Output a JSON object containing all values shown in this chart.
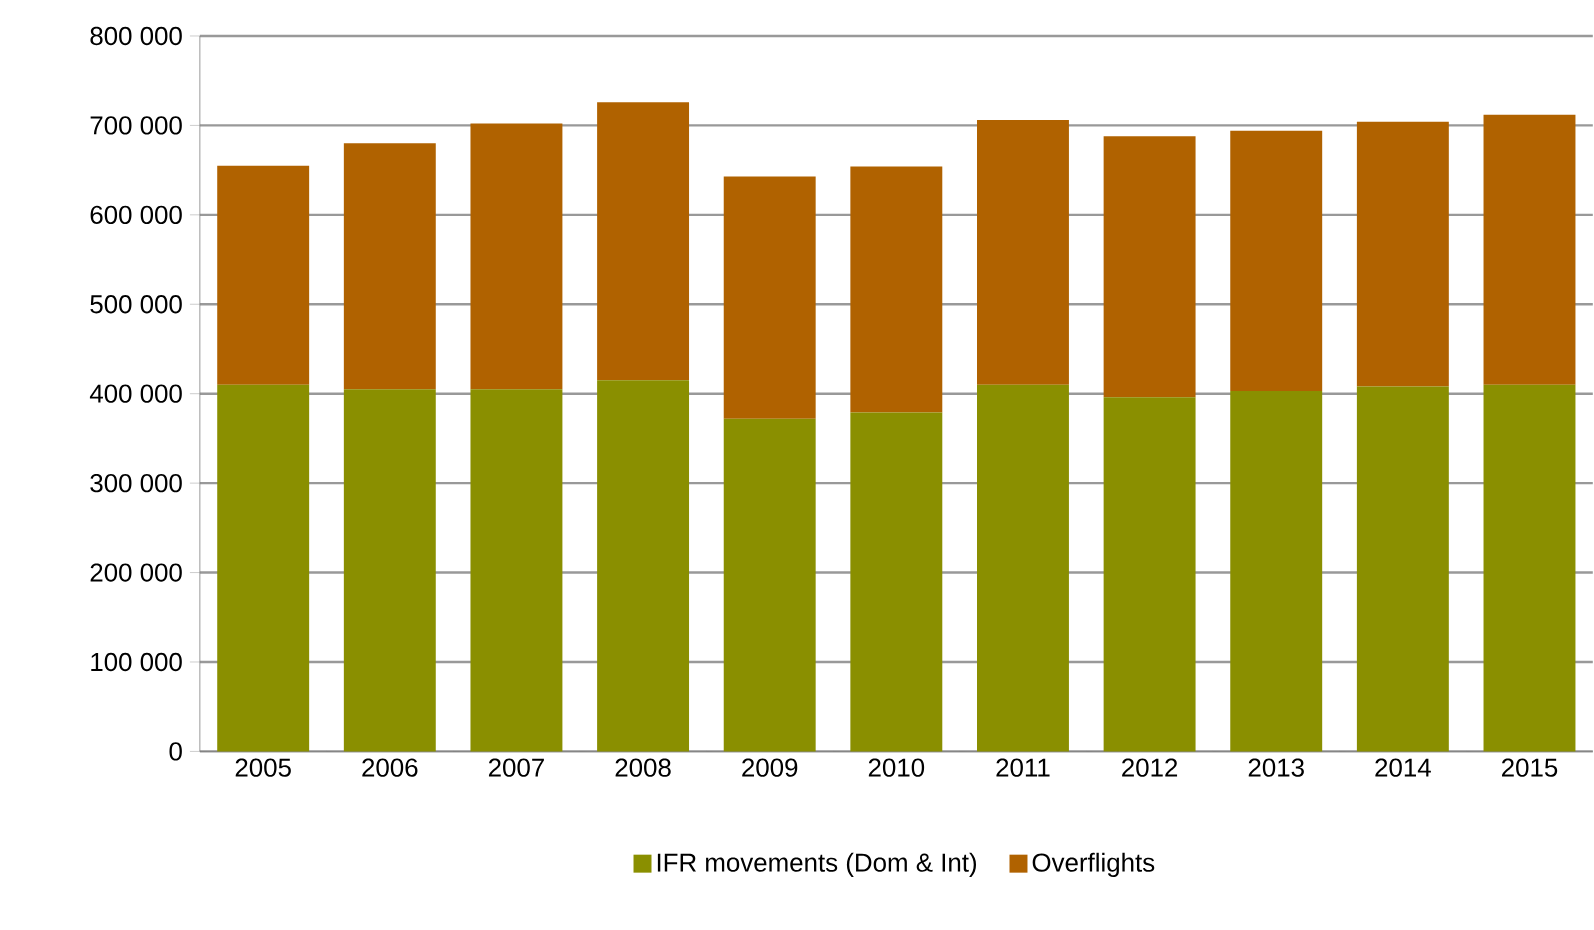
{
  "chart_data": {
    "type": "bar",
    "stacked": true,
    "categories": [
      "2005",
      "2006",
      "2007",
      "2008",
      "2009",
      "2010",
      "2011",
      "2012",
      "2013",
      "2014",
      "2015"
    ],
    "series": [
      {
        "name": "IFR movements (Dom & Int)",
        "color": "#8a8f00",
        "values": [
          410000,
          405000,
          405000,
          415000,
          372000,
          379000,
          410000,
          396000,
          403000,
          408000,
          410000
        ]
      },
      {
        "name": "Overflights",
        "color": "#b06200",
        "values": [
          245000,
          275000,
          297000,
          311000,
          271000,
          275000,
          296000,
          292000,
          291000,
          296000,
          302000
        ]
      }
    ],
    "ylim": [
      0,
      800000
    ],
    "yticks": [
      {
        "value": 0,
        "label": "0"
      },
      {
        "value": 100000,
        "label": "100 000"
      },
      {
        "value": 200000,
        "label": "200 000"
      },
      {
        "value": 300000,
        "label": "300 000"
      },
      {
        "value": 400000,
        "label": "400 000"
      },
      {
        "value": 500000,
        "label": "500 000"
      },
      {
        "value": 600000,
        "label": "600 000"
      },
      {
        "value": 700000,
        "label": "700 000"
      },
      {
        "value": 800000,
        "label": "800 000"
      }
    ],
    "grid": "y",
    "legend": "bottom"
  }
}
